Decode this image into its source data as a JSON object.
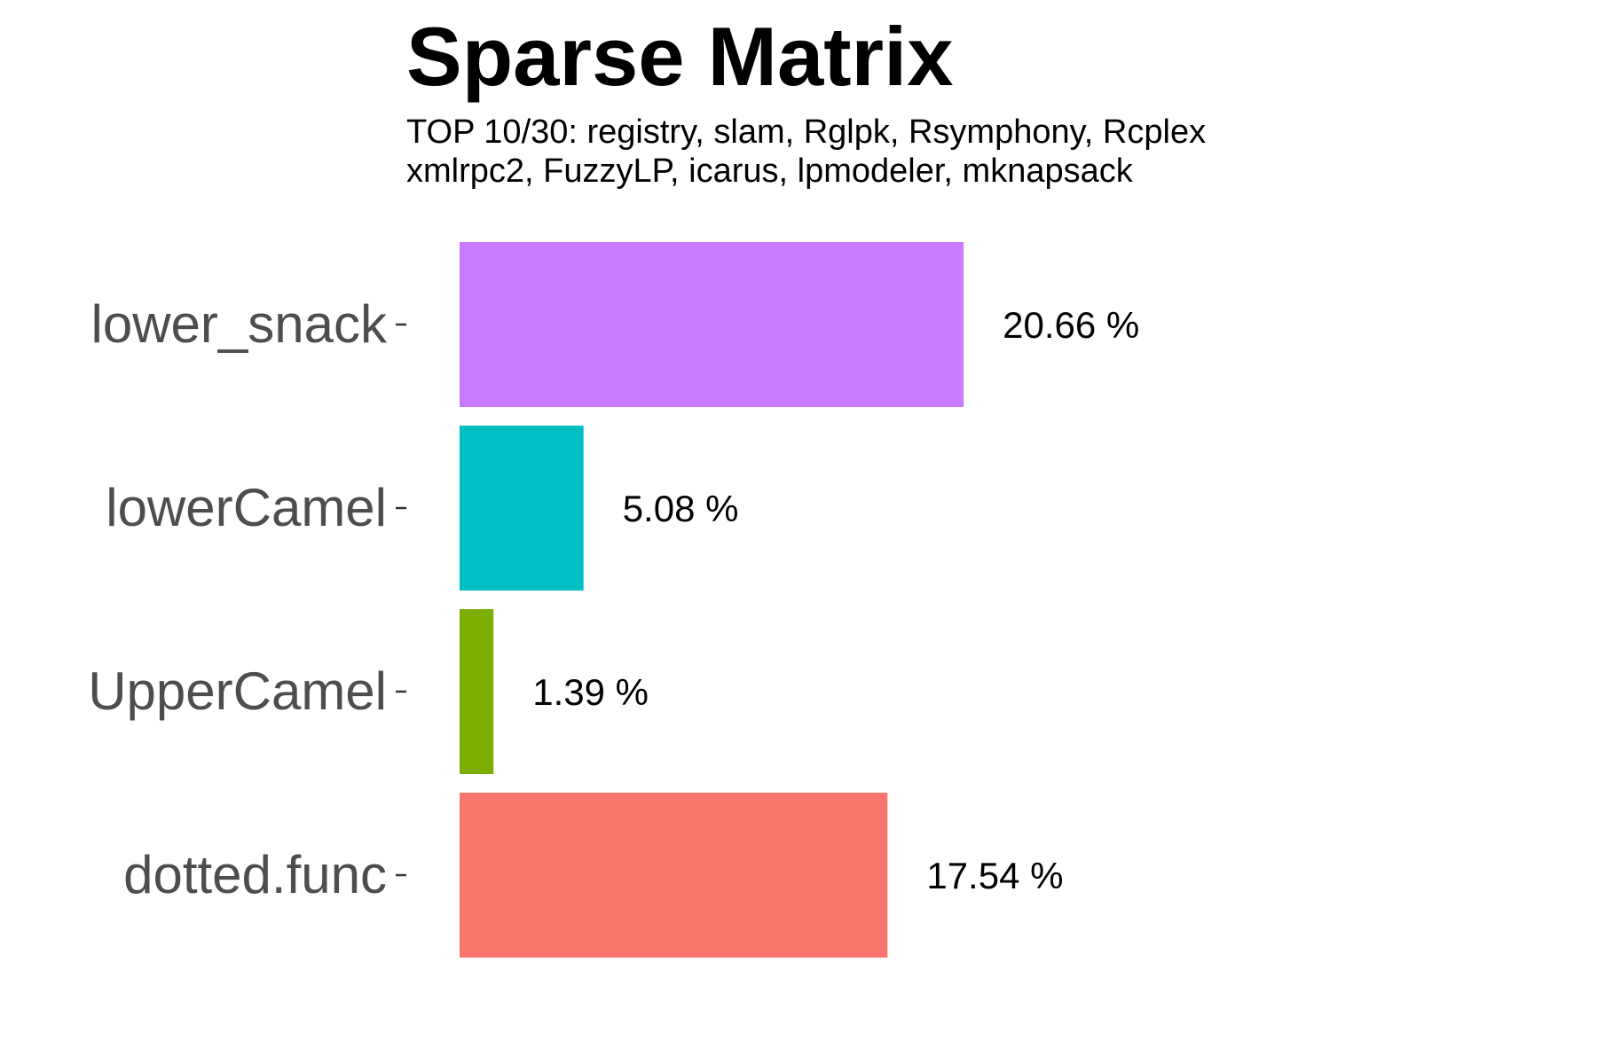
{
  "chart_data": {
    "type": "bar",
    "orientation": "horizontal",
    "title": "Sparse Matrix",
    "subtitle_lines": [
      "TOP 10/30: registry, slam, Rglpk, Rsymphony, Rcplex",
      "xmlrpc2, FuzzyLP, icarus, lpmodeler, mknapsack"
    ],
    "categories": [
      "lower_snack",
      "lowerCamel",
      "UpperCamel",
      "dotted.func"
    ],
    "values": [
      20.66,
      5.08,
      1.39,
      17.54
    ],
    "value_labels": [
      "20.66 %",
      "5.08 %",
      "1.39 %",
      "17.54 %"
    ],
    "colors": [
      "#C77CFF",
      "#00BFC4",
      "#7CAE00",
      "#F8766D"
    ],
    "xlim": [
      0,
      100
    ],
    "grid": false,
    "legend": "none",
    "xlabel": "",
    "ylabel": ""
  }
}
